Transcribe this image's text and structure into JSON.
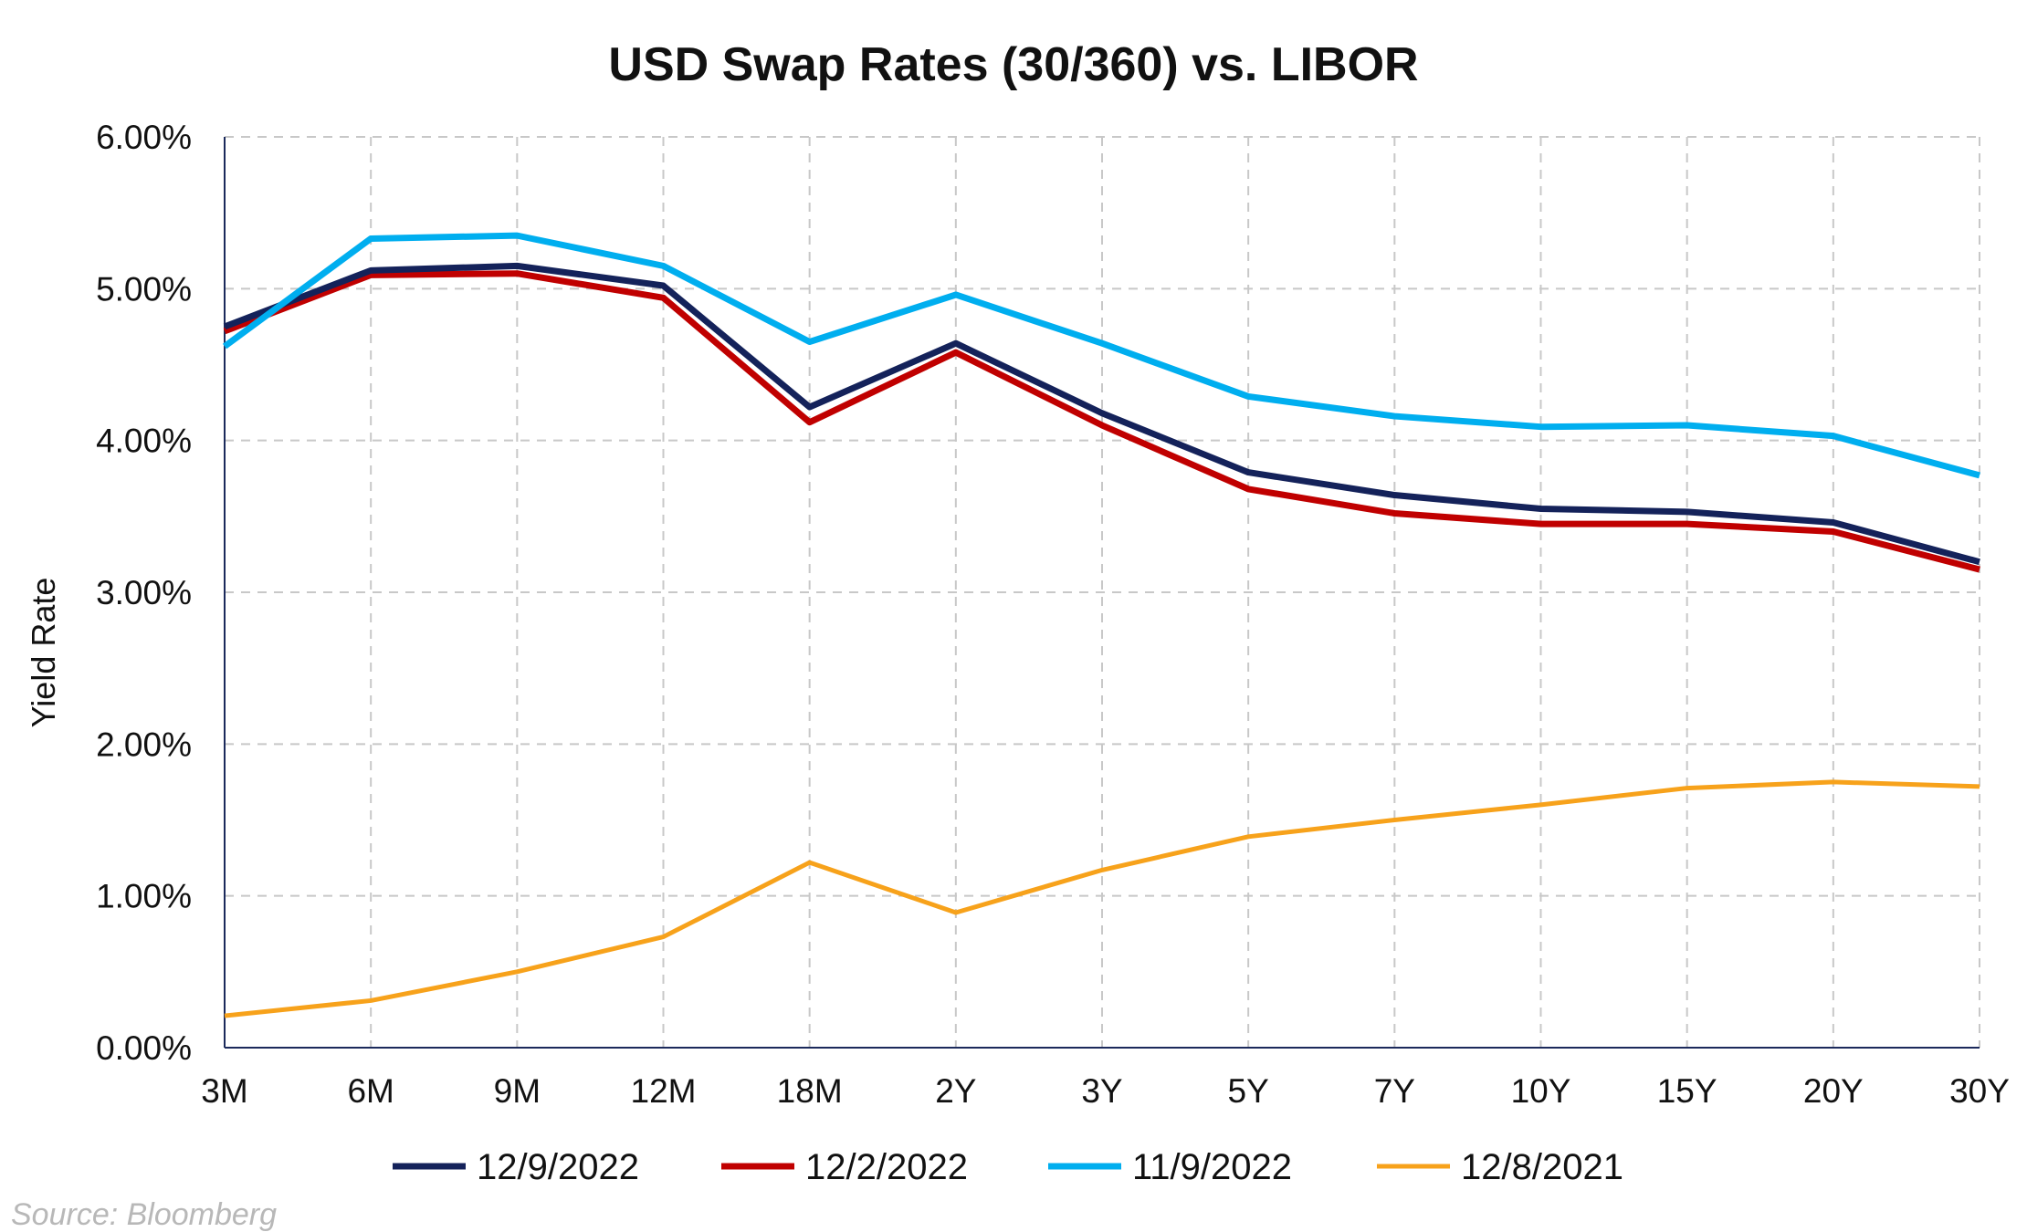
{
  "chart_data": {
    "type": "line",
    "title": "USD Swap Rates (30/360) vs. LIBOR",
    "xlabel": "",
    "ylabel": "Yield Rate",
    "source": "Source: Bloomberg",
    "categories": [
      "3M",
      "6M",
      "9M",
      "12M",
      "18M",
      "2Y",
      "3Y",
      "5Y",
      "7Y",
      "10Y",
      "15Y",
      "20Y",
      "30Y"
    ],
    "ylim": [
      0,
      6
    ],
    "yticks": [
      0,
      1,
      2,
      3,
      4,
      5,
      6
    ],
    "ytick_labels": [
      "0.00%",
      "1.00%",
      "2.00%",
      "3.00%",
      "4.00%",
      "5.00%",
      "6.00%"
    ],
    "grid": true,
    "legend_position": "bottom",
    "series": [
      {
        "name": "12/9/2022",
        "color": "#14225a",
        "values": [
          4.75,
          5.12,
          5.15,
          5.02,
          4.22,
          4.64,
          4.18,
          3.79,
          3.64,
          3.55,
          3.53,
          3.46,
          3.2
        ]
      },
      {
        "name": "12/2/2022",
        "color": "#c00000",
        "values": [
          4.72,
          5.09,
          5.1,
          4.94,
          4.12,
          4.58,
          4.1,
          3.68,
          3.52,
          3.45,
          3.45,
          3.4,
          3.15
        ]
      },
      {
        "name": "11/9/2022",
        "color": "#00aeef",
        "values": [
          4.62,
          5.33,
          5.35,
          5.15,
          4.65,
          4.96,
          4.64,
          4.29,
          4.16,
          4.09,
          4.1,
          4.03,
          3.77
        ]
      },
      {
        "name": "12/8/2021",
        "color": "#f7a21b",
        "values": [
          0.21,
          0.31,
          0.5,
          0.73,
          1.22,
          0.89,
          1.17,
          1.39,
          1.5,
          1.6,
          1.71,
          1.75,
          1.72
        ]
      }
    ]
  }
}
